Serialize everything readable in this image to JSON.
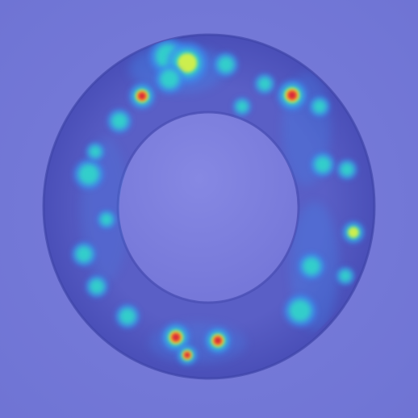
{
  "image": {
    "subject": "heatmap-overlay-on-ring-specimen",
    "colors": {
      "background": "#7478d8",
      "ring": "#5a5fc6",
      "ring_edge": "#3e43a6",
      "inner_disk": "#7d7fdc",
      "inner_edge": "#4d51b6",
      "heat_low": "#3c8cf0",
      "heat_mid": "#30d7c8",
      "heat_high_1": "#d6f046",
      "heat_high_2": "#f58a2a",
      "heat_peak": "#d8203a"
    }
  },
  "heat_spots": [
    {
      "id": "top-cluster-1",
      "intensity": 0.55
    },
    {
      "id": "top-cluster-2",
      "intensity": 0.6
    },
    {
      "id": "top-cluster-3",
      "intensity": 0.5
    },
    {
      "id": "top-cluster-4",
      "intensity": 0.45
    },
    {
      "id": "upper-left-peak",
      "intensity": 0.95
    },
    {
      "id": "left-1",
      "intensity": 0.4
    },
    {
      "id": "left-2",
      "intensity": 0.5
    },
    {
      "id": "left-3",
      "intensity": 0.45
    },
    {
      "id": "left-4",
      "intensity": 0.4
    },
    {
      "id": "left-5",
      "intensity": 0.5
    },
    {
      "id": "left-6",
      "intensity": 0.45
    },
    {
      "id": "bottom-left-1",
      "intensity": 0.45
    },
    {
      "id": "bottom-peak-1",
      "intensity": 1.0
    },
    {
      "id": "bottom-peak-2",
      "intensity": 0.95
    },
    {
      "id": "bottom-peak-3",
      "intensity": 0.9
    },
    {
      "id": "right-peak",
      "intensity": 0.95
    },
    {
      "id": "right-1",
      "intensity": 0.5
    },
    {
      "id": "right-2",
      "intensity": 0.55
    },
    {
      "id": "right-3",
      "intensity": 0.5
    },
    {
      "id": "right-4",
      "intensity": 0.45
    },
    {
      "id": "right-5",
      "intensity": 0.5
    },
    {
      "id": "right-6",
      "intensity": 0.7
    },
    {
      "id": "right-7",
      "intensity": 0.5
    },
    {
      "id": "right-8",
      "intensity": 0.45
    },
    {
      "id": "right-9",
      "intensity": 0.4
    }
  ]
}
